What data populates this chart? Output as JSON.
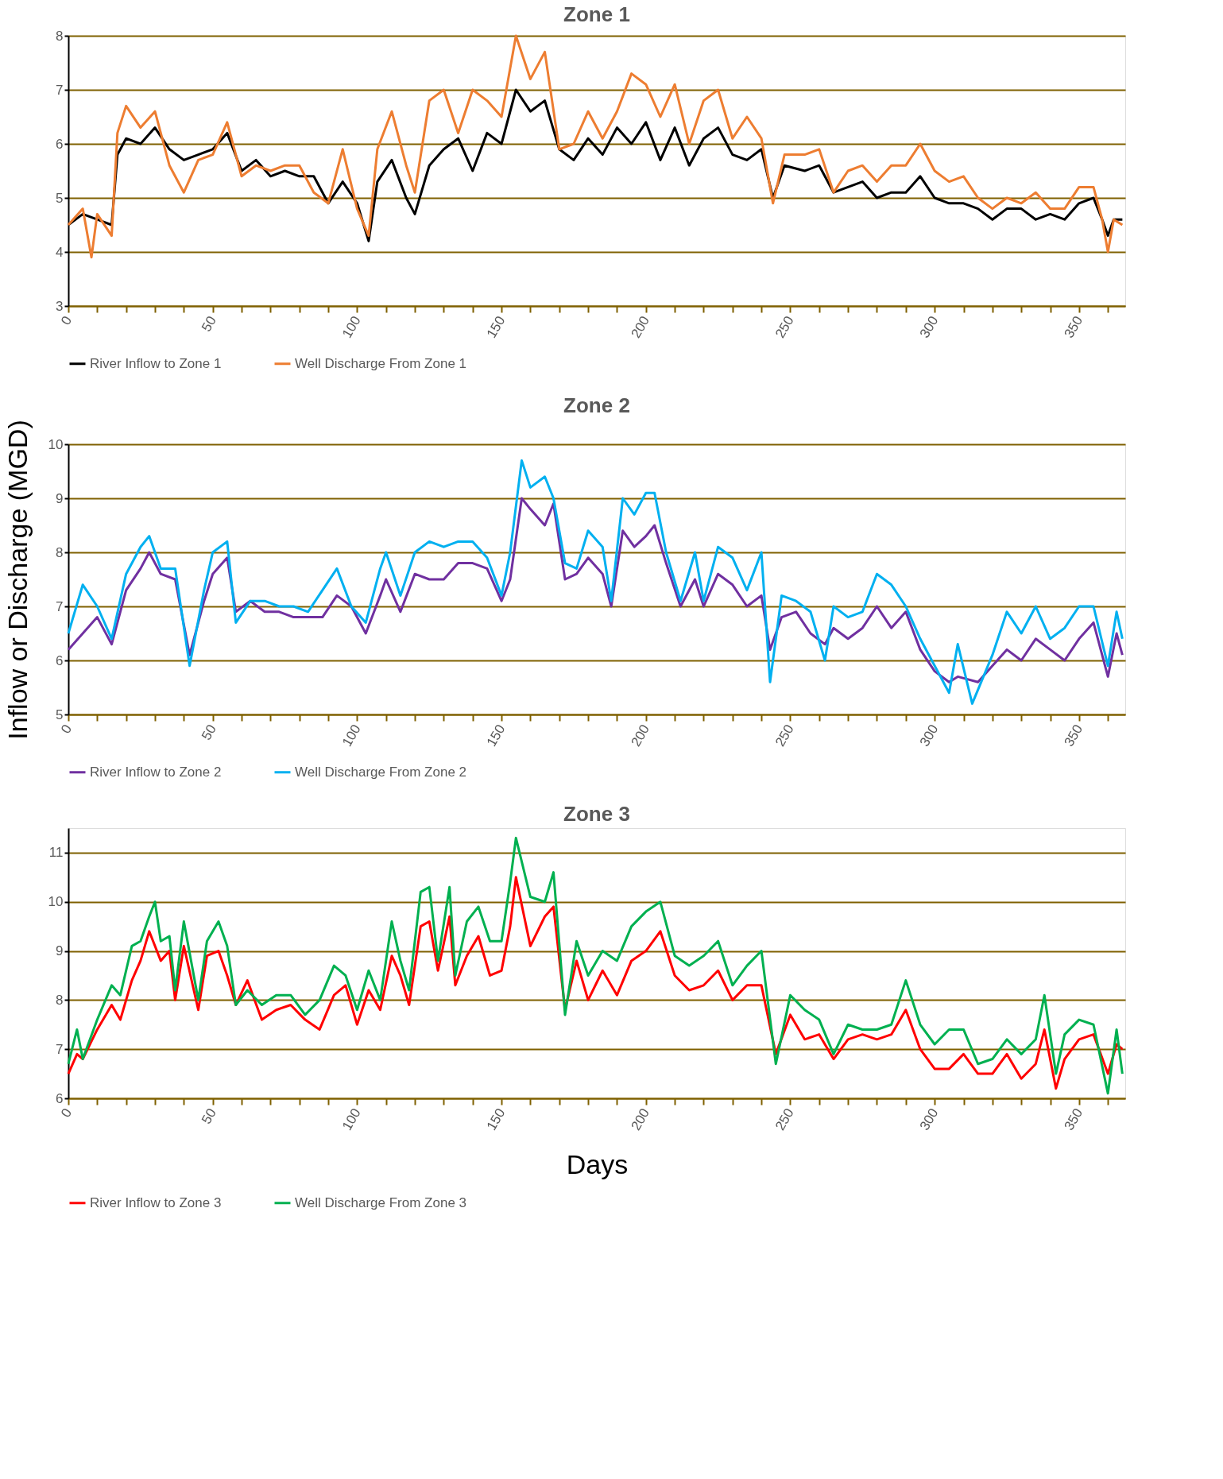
{
  "chart_data": [
    {
      "type": "line",
      "title": "Zone 1",
      "xlim": [
        0,
        366
      ],
      "ylim": [
        3,
        8
      ],
      "yticks": [
        3,
        4,
        5,
        6,
        7,
        8
      ],
      "grid": "y",
      "legend": "bottom",
      "line_style": "solid",
      "marker": "none",
      "xticks": [
        0,
        {
          "value": 10,
          "label": null
        },
        {
          "value": 20,
          "label": null
        },
        {
          "value": 30,
          "label": null
        },
        {
          "value": 40,
          "label": null
        },
        50,
        {
          "value": 60,
          "label": null
        },
        {
          "value": 70,
          "label": null
        },
        {
          "value": 80,
          "label": null
        },
        {
          "value": 90,
          "label": null
        },
        100,
        {
          "value": 110,
          "label": null
        },
        {
          "value": 120,
          "label": null
        },
        {
          "value": 130,
          "label": null
        },
        {
          "value": 140,
          "label": null
        },
        150,
        {
          "value": 160,
          "label": null
        },
        {
          "value": 170,
          "label": null
        },
        {
          "value": 180,
          "label": null
        },
        {
          "value": 190,
          "label": null
        },
        200,
        {
          "value": 210,
          "label": null
        },
        {
          "value": 220,
          "label": null
        },
        {
          "value": 230,
          "label": null
        },
        {
          "value": 240,
          "label": null
        },
        250,
        {
          "value": 260,
          "label": null
        },
        {
          "value": 270,
          "label": null
        },
        {
          "value": 280,
          "label": null
        },
        {
          "value": 290,
          "label": null
        },
        300,
        {
          "value": 310,
          "label": null
        },
        {
          "value": 320,
          "label": null
        },
        {
          "value": 330,
          "label": null
        },
        {
          "value": 340,
          "label": null
        },
        350,
        {
          "value": 360,
          "label": null
        }
      ],
      "series": [
        {
          "name": "River Inflow to Zone 1",
          "color": "#000000",
          "x": [
            0,
            5,
            10,
            15,
            17,
            20,
            25,
            30,
            35,
            40,
            45,
            50,
            55,
            60,
            65,
            70,
            75,
            80,
            85,
            90,
            95,
            100,
            104,
            107,
            112,
            117,
            120,
            125,
            130,
            135,
            140,
            145,
            150,
            155,
            160,
            165,
            170,
            175,
            180,
            185,
            190,
            195,
            200,
            205,
            210,
            215,
            220,
            225,
            230,
            235,
            240,
            244,
            248,
            255,
            260,
            265,
            270,
            275,
            280,
            285,
            290,
            295,
            300,
            305,
            310,
            315,
            320,
            325,
            330,
            335,
            340,
            345,
            350,
            355,
            358,
            360,
            362,
            365
          ],
          "values": [
            4.5,
            4.7,
            4.6,
            4.5,
            5.8,
            6.1,
            6.0,
            6.3,
            5.9,
            5.7,
            5.8,
            5.9,
            6.2,
            5.5,
            5.7,
            5.4,
            5.5,
            5.4,
            5.4,
            4.9,
            5.3,
            4.9,
            4.2,
            5.3,
            5.7,
            5.0,
            4.7,
            5.6,
            5.9,
            6.1,
            5.5,
            6.2,
            6.0,
            7.0,
            6.6,
            6.8,
            5.9,
            5.7,
            6.1,
            5.8,
            6.3,
            6.0,
            6.4,
            5.7,
            6.3,
            5.6,
            6.1,
            6.3,
            5.8,
            5.7,
            5.9,
            5.0,
            5.6,
            5.5,
            5.6,
            5.1,
            5.2,
            5.3,
            5.0,
            5.1,
            5.1,
            5.4,
            5.0,
            4.9,
            4.9,
            4.8,
            4.6,
            4.8,
            4.8,
            4.6,
            4.7,
            4.6,
            4.9,
            5.0,
            4.6,
            4.3,
            4.6,
            4.6
          ]
        },
        {
          "name": "Well Discharge From Zone 1",
          "color": "#ed7d31",
          "x": [
            0,
            5,
            8,
            10,
            15,
            17,
            20,
            25,
            30,
            35,
            40,
            45,
            50,
            55,
            60,
            65,
            70,
            75,
            80,
            85,
            90,
            95,
            100,
            104,
            107,
            112,
            117,
            120,
            125,
            130,
            135,
            140,
            145,
            150,
            155,
            160,
            165,
            170,
            175,
            180,
            185,
            190,
            195,
            200,
            205,
            210,
            215,
            220,
            225,
            230,
            235,
            240,
            244,
            248,
            255,
            260,
            265,
            270,
            275,
            280,
            285,
            290,
            295,
            300,
            305,
            310,
            315,
            320,
            325,
            330,
            335,
            340,
            345,
            350,
            355,
            358,
            360,
            362,
            365
          ],
          "values": [
            4.5,
            4.8,
            3.9,
            4.7,
            4.3,
            6.2,
            6.7,
            6.3,
            6.6,
            5.6,
            5.1,
            5.7,
            5.8,
            6.4,
            5.4,
            5.6,
            5.5,
            5.6,
            5.6,
            5.1,
            4.9,
            5.9,
            4.8,
            4.3,
            5.9,
            6.6,
            5.6,
            5.1,
            6.8,
            7.0,
            6.2,
            7.0,
            6.8,
            6.5,
            8.0,
            7.2,
            7.7,
            5.9,
            6.0,
            6.6,
            6.1,
            6.6,
            7.3,
            7.1,
            6.5,
            7.1,
            6.0,
            6.8,
            7.0,
            6.1,
            6.5,
            6.1,
            4.9,
            5.8,
            5.8,
            5.9,
            5.1,
            5.5,
            5.6,
            5.3,
            5.6,
            5.6,
            6.0,
            5.5,
            5.3,
            5.4,
            5.0,
            4.8,
            5.0,
            4.9,
            5.1,
            4.8,
            4.8,
            5.2,
            5.2,
            4.6,
            4.0,
            4.6,
            4.5
          ]
        }
      ]
    },
    {
      "type": "line",
      "title": "Zone 2",
      "ylabel": "Inflow or Discharge (MGD)",
      "xlim": [
        0,
        366
      ],
      "ylim": [
        5,
        10
      ],
      "yticks": [
        5,
        6,
        7,
        8,
        9,
        10
      ],
      "grid": "y",
      "legend": "bottom",
      "line_style": "solid",
      "marker": "none",
      "xticks": [
        0,
        {
          "value": 10,
          "label": null
        },
        {
          "value": 20,
          "label": null
        },
        {
          "value": 30,
          "label": null
        },
        {
          "value": 40,
          "label": null
        },
        50,
        {
          "value": 60,
          "label": null
        },
        {
          "value": 70,
          "label": null
        },
        {
          "value": 80,
          "label": null
        },
        {
          "value": 90,
          "label": null
        },
        100,
        {
          "value": 110,
          "label": null
        },
        {
          "value": 120,
          "label": null
        },
        {
          "value": 130,
          "label": null
        },
        {
          "value": 140,
          "label": null
        },
        150,
        {
          "value": 160,
          "label": null
        },
        {
          "value": 170,
          "label": null
        },
        {
          "value": 180,
          "label": null
        },
        {
          "value": 190,
          "label": null
        },
        200,
        {
          "value": 210,
          "label": null
        },
        {
          "value": 220,
          "label": null
        },
        {
          "value": 230,
          "label": null
        },
        {
          "value": 240,
          "label": null
        },
        250,
        {
          "value": 260,
          "label": null
        },
        {
          "value": 270,
          "label": null
        },
        {
          "value": 280,
          "label": null
        },
        {
          "value": 290,
          "label": null
        },
        300,
        {
          "value": 310,
          "label": null
        },
        {
          "value": 320,
          "label": null
        },
        {
          "value": 330,
          "label": null
        },
        {
          "value": 340,
          "label": null
        },
        350,
        {
          "value": 360,
          "label": null
        }
      ],
      "series": [
        {
          "name": "River Inflow to Zone 2",
          "color": "#7030a0",
          "x": [
            0,
            5,
            10,
            15,
            20,
            25,
            28,
            32,
            37,
            42,
            47,
            50,
            55,
            58,
            63,
            68,
            73,
            78,
            83,
            88,
            93,
            98,
            103,
            108,
            110,
            115,
            120,
            125,
            130,
            135,
            140,
            145,
            150,
            153,
            157,
            160,
            165,
            168,
            172,
            176,
            180,
            185,
            188,
            192,
            196,
            200,
            203,
            207,
            212,
            217,
            220,
            225,
            230,
            235,
            240,
            243,
            247,
            252,
            257,
            262,
            265,
            270,
            275,
            280,
            285,
            290,
            295,
            300,
            305,
            308,
            315,
            320,
            325,
            330,
            335,
            340,
            345,
            350,
            355,
            360,
            363,
            365
          ],
          "values": [
            6.2,
            6.5,
            6.8,
            6.3,
            7.3,
            7.7,
            8.0,
            7.6,
            7.5,
            6.1,
            7.1,
            7.6,
            7.9,
            6.9,
            7.1,
            6.9,
            6.9,
            6.8,
            6.8,
            6.8,
            7.2,
            7.0,
            6.5,
            7.2,
            7.5,
            6.9,
            7.6,
            7.5,
            7.5,
            7.8,
            7.8,
            7.7,
            7.1,
            7.5,
            9.0,
            8.8,
            8.5,
            8.9,
            7.5,
            7.6,
            7.9,
            7.6,
            7.0,
            8.4,
            8.1,
            8.3,
            8.5,
            7.8,
            7.0,
            7.5,
            7.0,
            7.6,
            7.4,
            7.0,
            7.2,
            6.2,
            6.8,
            6.9,
            6.5,
            6.3,
            6.6,
            6.4,
            6.6,
            7.0,
            6.6,
            6.9,
            6.2,
            5.8,
            5.6,
            5.7,
            5.6,
            5.9,
            6.2,
            6.0,
            6.4,
            6.2,
            6.0,
            6.4,
            6.7,
            5.7,
            6.5,
            6.1
          ]
        },
        {
          "name": "Well Discharge From Zone 2",
          "color": "#00b0f0",
          "x": [
            0,
            5,
            10,
            15,
            20,
            25,
            28,
            32,
            37,
            42,
            47,
            50,
            55,
            58,
            63,
            68,
            73,
            78,
            83,
            88,
            93,
            98,
            103,
            108,
            110,
            115,
            120,
            125,
            130,
            135,
            140,
            145,
            150,
            153,
            157,
            160,
            165,
            168,
            172,
            176,
            180,
            185,
            188,
            192,
            196,
            200,
            203,
            207,
            212,
            217,
            220,
            225,
            230,
            235,
            240,
            243,
            247,
            252,
            257,
            262,
            265,
            270,
            275,
            280,
            285,
            290,
            295,
            300,
            305,
            308,
            313,
            320,
            325,
            330,
            335,
            340,
            345,
            350,
            355,
            360,
            363,
            365
          ],
          "values": [
            6.5,
            7.4,
            7.0,
            6.4,
            7.6,
            8.1,
            8.3,
            7.7,
            7.7,
            5.9,
            7.3,
            8.0,
            8.2,
            6.7,
            7.1,
            7.1,
            7.0,
            7.0,
            6.9,
            7.3,
            7.7,
            7.0,
            6.7,
            7.7,
            8.0,
            7.2,
            8.0,
            8.2,
            8.1,
            8.2,
            8.2,
            7.9,
            7.2,
            8.0,
            9.7,
            9.2,
            9.4,
            9.0,
            7.8,
            7.7,
            8.4,
            8.1,
            7.1,
            9.0,
            8.7,
            9.1,
            9.1,
            8.0,
            7.1,
            8.0,
            7.1,
            8.1,
            7.9,
            7.3,
            8.0,
            5.6,
            7.2,
            7.1,
            6.9,
            6.0,
            7.0,
            6.8,
            6.9,
            7.6,
            7.4,
            7.0,
            6.4,
            5.9,
            5.4,
            6.3,
            5.2,
            6.1,
            6.9,
            6.5,
            7.0,
            6.4,
            6.6,
            7.0,
            7.0,
            5.9,
            6.9,
            6.4
          ]
        }
      ]
    },
    {
      "type": "line",
      "title": "Zone 3",
      "xlabel": "Days",
      "xlim": [
        0,
        366
      ],
      "ylim": [
        6,
        11.5
      ],
      "yticks": [
        6,
        7,
        8,
        9,
        10,
        11
      ],
      "grid": "y",
      "legend": "bottom",
      "line_style": "solid",
      "marker": "none",
      "xticks": [
        0,
        {
          "value": 10,
          "label": null
        },
        {
          "value": 20,
          "label": null
        },
        {
          "value": 30,
          "label": null
        },
        {
          "value": 40,
          "label": null
        },
        50,
        {
          "value": 60,
          "label": null
        },
        {
          "value": 70,
          "label": null
        },
        {
          "value": 80,
          "label": null
        },
        {
          "value": 90,
          "label": null
        },
        100,
        {
          "value": 110,
          "label": null
        },
        {
          "value": 120,
          "label": null
        },
        {
          "value": 130,
          "label": null
        },
        {
          "value": 140,
          "label": null
        },
        150,
        {
          "value": 160,
          "label": null
        },
        {
          "value": 170,
          "label": null
        },
        {
          "value": 180,
          "label": null
        },
        {
          "value": 190,
          "label": null
        },
        200,
        {
          "value": 210,
          "label": null
        },
        {
          "value": 220,
          "label": null
        },
        {
          "value": 230,
          "label": null
        },
        {
          "value": 240,
          "label": null
        },
        250,
        {
          "value": 260,
          "label": null
        },
        {
          "value": 270,
          "label": null
        },
        {
          "value": 280,
          "label": null
        },
        {
          "value": 290,
          "label": null
        },
        300,
        {
          "value": 310,
          "label": null
        },
        {
          "value": 320,
          "label": null
        },
        {
          "value": 330,
          "label": null
        },
        {
          "value": 340,
          "label": null
        },
        350,
        {
          "value": 360,
          "label": null
        }
      ],
      "series": [
        {
          "name": "River Inflow to Zone 3",
          "color": "#ff0000",
          "x": [
            0,
            3,
            5,
            10,
            15,
            18,
            22,
            25,
            28,
            32,
            35,
            37,
            40,
            45,
            48,
            52,
            55,
            58,
            62,
            67,
            72,
            77,
            82,
            87,
            92,
            96,
            100,
            104,
            108,
            112,
            115,
            118,
            122,
            125,
            128,
            132,
            134,
            138,
            142,
            146,
            150,
            153,
            155,
            160,
            165,
            168,
            172,
            176,
            180,
            185,
            190,
            195,
            200,
            205,
            210,
            215,
            220,
            225,
            230,
            235,
            240,
            245,
            250,
            255,
            260,
            265,
            270,
            275,
            280,
            285,
            290,
            295,
            300,
            305,
            310,
            315,
            320,
            325,
            330,
            335,
            338,
            342,
            345,
            350,
            355,
            360,
            363,
            365
          ],
          "values": [
            6.5,
            6.9,
            6.8,
            7.4,
            7.9,
            7.6,
            8.4,
            8.8,
            9.4,
            8.8,
            9.0,
            8.0,
            9.1,
            7.8,
            8.9,
            9.0,
            8.5,
            7.9,
            8.4,
            7.6,
            7.8,
            7.9,
            7.6,
            7.4,
            8.1,
            8.3,
            7.5,
            8.2,
            7.8,
            8.9,
            8.5,
            7.9,
            9.5,
            9.6,
            8.6,
            9.7,
            8.3,
            8.9,
            9.3,
            8.5,
            8.6,
            9.5,
            10.5,
            9.1,
            9.7,
            9.9,
            7.8,
            8.8,
            8.0,
            8.6,
            8.1,
            8.8,
            9.0,
            9.4,
            8.5,
            8.2,
            8.3,
            8.6,
            8.0,
            8.3,
            8.3,
            6.9,
            7.7,
            7.2,
            7.3,
            6.8,
            7.2,
            7.3,
            7.2,
            7.3,
            7.8,
            7.0,
            6.6,
            6.6,
            6.9,
            6.5,
            6.5,
            6.9,
            6.4,
            6.7,
            7.4,
            6.2,
            6.8,
            7.2,
            7.3,
            6.5,
            7.1,
            7.0
          ]
        },
        {
          "name": "Well Discharge From Zone 3",
          "color": "#00b050",
          "x": [
            0,
            3,
            5,
            10,
            15,
            18,
            22,
            25,
            28,
            30,
            32,
            35,
            37,
            40,
            45,
            48,
            52,
            55,
            58,
            62,
            67,
            72,
            77,
            82,
            87,
            92,
            96,
            100,
            104,
            108,
            112,
            115,
            118,
            122,
            125,
            128,
            132,
            134,
            138,
            142,
            146,
            150,
            153,
            155,
            160,
            165,
            168,
            172,
            176,
            180,
            185,
            190,
            195,
            200,
            205,
            210,
            215,
            220,
            225,
            230,
            235,
            240,
            245,
            250,
            255,
            260,
            265,
            270,
            275,
            280,
            285,
            290,
            295,
            300,
            305,
            310,
            315,
            320,
            325,
            330,
            335,
            338,
            342,
            345,
            350,
            355,
            360,
            363,
            365
          ],
          "values": [
            6.7,
            7.4,
            6.8,
            7.6,
            8.3,
            8.1,
            9.1,
            9.2,
            9.7,
            10.0,
            9.2,
            9.3,
            8.2,
            9.6,
            8.0,
            9.2,
            9.6,
            9.1,
            7.9,
            8.2,
            7.9,
            8.1,
            8.1,
            7.7,
            8.0,
            8.7,
            8.5,
            7.8,
            8.6,
            8.0,
            9.6,
            8.8,
            8.2,
            10.2,
            10.3,
            8.8,
            10.3,
            8.5,
            9.6,
            9.9,
            9.2,
            9.2,
            10.4,
            11.3,
            10.1,
            10.0,
            10.6,
            7.7,
            9.2,
            8.5,
            9.0,
            8.8,
            9.5,
            9.8,
            10.0,
            8.9,
            8.7,
            8.9,
            9.2,
            8.3,
            8.7,
            9.0,
            6.7,
            8.1,
            7.8,
            7.6,
            6.9,
            7.5,
            7.4,
            7.4,
            7.5,
            8.4,
            7.5,
            7.1,
            7.4,
            7.4,
            6.7,
            6.8,
            7.2,
            6.9,
            7.2,
            8.1,
            6.5,
            7.3,
            7.6,
            7.5,
            6.1,
            7.4,
            6.5
          ]
        }
      ]
    }
  ]
}
